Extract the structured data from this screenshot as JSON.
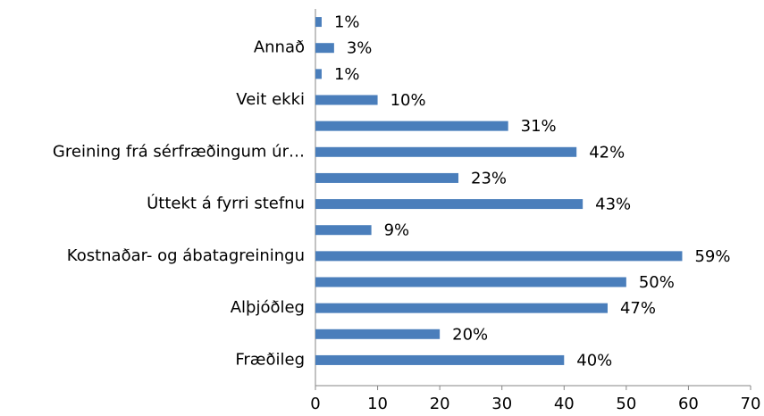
{
  "chart_data": {
    "type": "bar",
    "orientation": "horizontal",
    "categories": [
      null,
      "Annað",
      null,
      "Veit ekki",
      null,
      "Greining frá sérfræðingum úr…",
      null,
      "Úttekt á fyrri stefnu",
      null,
      "Kostnaðar- og ábatagreiningu",
      null,
      "Alþjóðleg",
      null,
      "Fræðileg"
    ],
    "values": [
      1,
      3,
      1,
      10,
      31,
      42,
      23,
      43,
      9,
      59,
      50,
      47,
      20,
      40
    ],
    "value_labels": [
      "1%",
      "3%",
      "1%",
      "10%",
      "31%",
      "42%",
      "23%",
      "43%",
      "9%",
      "59%",
      "50%",
      "47%",
      "20%",
      "40%"
    ],
    "color": "#4a7ebb",
    "xlim": [
      0,
      70
    ],
    "xticks": [
      0,
      10,
      20,
      30,
      40,
      50,
      60,
      70
    ],
    "grid": false
  }
}
